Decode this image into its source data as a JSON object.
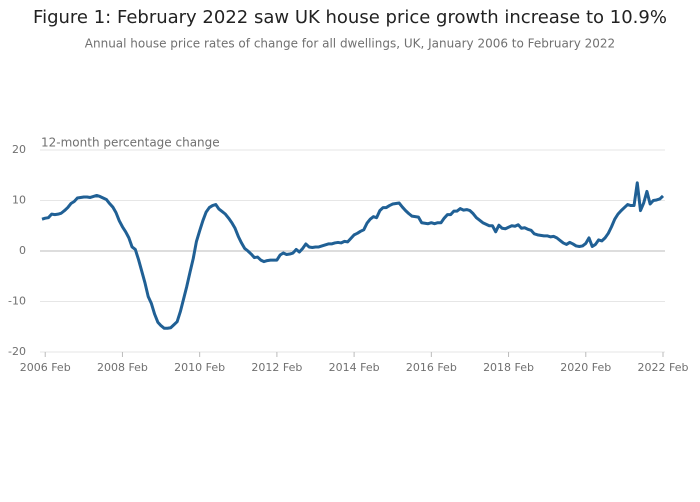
{
  "chart_data": {
    "type": "line",
    "title": "Figure 1: February 2022 saw UK house price growth increase to 10.9%",
    "subtitle": "Annual house price rates of change for all dwellings, UK, January 2006 to February 2022",
    "y_label": "12-month percentage change",
    "color": "#206095",
    "grid": true,
    "ylim": [
      -20,
      20
    ],
    "yticks": [
      -20,
      -10,
      0,
      10,
      20
    ],
    "categories": [
      null,
      "2006 Feb",
      null,
      null,
      null,
      null,
      null,
      null,
      null,
      null,
      null,
      null,
      null,
      null,
      null,
      null,
      null,
      null,
      null,
      null,
      null,
      null,
      null,
      null,
      null,
      "2008 Feb",
      null,
      null,
      null,
      null,
      null,
      null,
      null,
      null,
      null,
      null,
      null,
      null,
      null,
      null,
      null,
      null,
      null,
      null,
      null,
      null,
      null,
      null,
      null,
      "2010 Feb",
      null,
      null,
      null,
      null,
      null,
      null,
      null,
      null,
      null,
      null,
      null,
      null,
      null,
      null,
      null,
      null,
      null,
      null,
      null,
      null,
      null,
      null,
      null,
      "2012 Feb",
      null,
      null,
      null,
      null,
      null,
      null,
      null,
      null,
      null,
      null,
      null,
      null,
      null,
      null,
      null,
      null,
      null,
      null,
      null,
      null,
      null,
      null,
      null,
      "2014 Feb",
      null,
      null,
      null,
      null,
      null,
      null,
      null,
      null,
      null,
      null,
      null,
      null,
      null,
      null,
      null,
      null,
      null,
      null,
      null,
      null,
      null,
      null,
      null,
      "2016 Feb",
      null,
      null,
      null,
      null,
      null,
      null,
      null,
      null,
      null,
      null,
      null,
      null,
      null,
      null,
      null,
      null,
      null,
      null,
      null,
      null,
      null,
      null,
      null,
      "2018 Feb",
      null,
      null,
      null,
      null,
      null,
      null,
      null,
      null,
      null,
      null,
      null,
      null,
      null,
      null,
      null,
      null,
      null,
      null,
      null,
      null,
      null,
      null,
      null,
      "2020 Feb",
      null,
      null,
      null,
      null,
      null,
      null,
      null,
      null,
      null,
      null,
      null,
      null,
      null,
      null,
      null,
      null,
      null,
      null,
      null,
      null,
      null,
      null,
      null,
      "2022 Feb"
    ],
    "values": [
      6.3,
      6.5,
      6.6,
      7.3,
      7.2,
      7.3,
      7.5,
      8.0,
      8.6,
      9.4,
      9.8,
      10.5,
      10.6,
      10.7,
      10.7,
      10.6,
      10.8,
      11.0,
      10.8,
      10.5,
      10.2,
      9.4,
      8.7,
      7.6,
      6.0,
      4.8,
      3.8,
      2.6,
      0.8,
      0.3,
      -1.7,
      -4.0,
      -6.3,
      -9.0,
      -10.4,
      -12.5,
      -14.1,
      -14.8,
      -15.3,
      -15.3,
      -15.2,
      -14.6,
      -14.0,
      -12.0,
      -9.5,
      -7.0,
      -4.2,
      -1.5,
      1.9,
      4.0,
      6.0,
      7.7,
      8.6,
      9.0,
      9.2,
      8.3,
      7.8,
      7.3,
      6.5,
      5.6,
      4.5,
      2.9,
      1.6,
      0.5,
      0.0,
      -0.6,
      -1.3,
      -1.2,
      -1.8,
      -2.1,
      -1.9,
      -1.8,
      -1.8,
      -1.8,
      -0.8,
      -0.4,
      -0.7,
      -0.6,
      -0.4,
      0.3,
      -0.2,
      0.5,
      1.4,
      0.8,
      0.7,
      0.8,
      0.8,
      1.0,
      1.2,
      1.4,
      1.4,
      1.6,
      1.7,
      1.6,
      1.9,
      1.8,
      2.5,
      3.2,
      3.5,
      3.9,
      4.2,
      5.5,
      6.3,
      6.8,
      6.6,
      8.0,
      8.6,
      8.6,
      9.0,
      9.3,
      9.4,
      9.5,
      8.7,
      8.0,
      7.4,
      6.9,
      6.8,
      6.7,
      5.6,
      5.5,
      5.4,
      5.6,
      5.4,
      5.6,
      5.6,
      6.5,
      7.2,
      7.2,
      7.9,
      7.9,
      8.4,
      8.1,
      8.2,
      8.0,
      7.4,
      6.6,
      6.1,
      5.6,
      5.3,
      5.0,
      5.0,
      3.8,
      5.1,
      4.5,
      4.4,
      4.7,
      5.0,
      4.9,
      5.2,
      4.5,
      4.6,
      4.3,
      4.1,
      3.4,
      3.2,
      3.1,
      3.0,
      3.0,
      2.8,
      2.9,
      2.6,
      2.1,
      1.6,
      1.3,
      1.7,
      1.4,
      1.0,
      0.9,
      1.0,
      1.5,
      2.6,
      0.9,
      1.3,
      2.2,
      2.0,
      2.6,
      3.5,
      4.8,
      6.3,
      7.3,
      8.0,
      8.6,
      9.2,
      9.0,
      9.0,
      13.5,
      8.0,
      9.5,
      11.8,
      9.3,
      10.0,
      10.1,
      10.3,
      10.9
    ]
  }
}
